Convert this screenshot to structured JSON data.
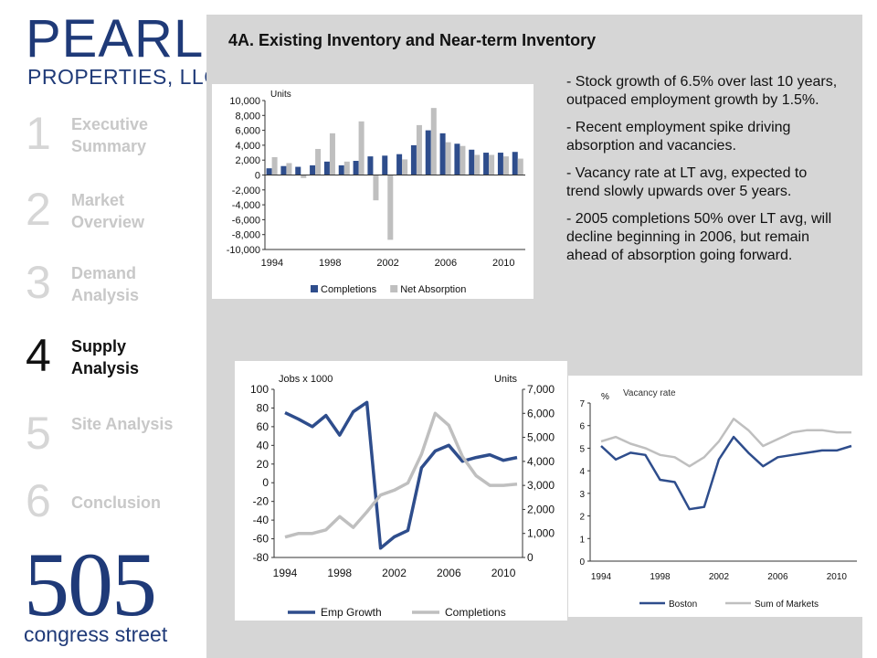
{
  "logo": {
    "top_line1": "PEARL",
    "top_line2": "PROPERTIES, LLC",
    "bottom_line1": "505",
    "bottom_line2": "congress street",
    "color": "#1f3a78"
  },
  "nav": [
    {
      "num": "1",
      "label": "Executive Summary",
      "active": false
    },
    {
      "num": "2",
      "label": "Market Overview",
      "active": false
    },
    {
      "num": "3",
      "label": "Demand Analysis",
      "active": false
    },
    {
      "num": "4",
      "label": "Supply Analysis",
      "active": true
    },
    {
      "num": "5",
      "label": "Site Analysis",
      "active": false
    },
    {
      "num": "6",
      "label": "Conclusion",
      "active": false
    }
  ],
  "page_title": "4A. Existing Inventory and Near-term Inventory",
  "bullets": [
    "- Stock growth of 6.5% over last 10 years, outpaced employment growth by 1.5%.",
    "- Recent employment spike driving absorption and vacancies.",
    "- Vacancy rate at LT avg, expected to trend slowly upwards over 5 years.",
    "- 2005 completions 50% over LT avg, will decline beginning in 2006, but remain ahead of absorption going forward."
  ],
  "chart_data": [
    {
      "type": "bar",
      "ylabel": "Units",
      "ylim": [
        -10000,
        10000
      ],
      "yticks": [
        "10,000",
        "8,000",
        "6,000",
        "4,000",
        "2,000",
        "0",
        "-2,000",
        "-4,000",
        "-6,000",
        "-8,000",
        "-10,000"
      ],
      "x_tick_labels": [
        "1994",
        "1998",
        "2002",
        "2006",
        "2010"
      ],
      "categories": [
        1994,
        1995,
        1996,
        1997,
        1998,
        1999,
        2000,
        2001,
        2002,
        2003,
        2004,
        2005,
        2006,
        2007,
        2008,
        2009,
        2010,
        2011
      ],
      "series": [
        {
          "name": "Completions",
          "color": "#2e4d8c",
          "values": [
            900,
            1200,
            1100,
            1300,
            1800,
            1300,
            1900,
            2500,
            2600,
            2800,
            4000,
            6000,
            5600,
            4200,
            3400,
            3000,
            3000,
            3100
          ]
        },
        {
          "name": "Net Absorption",
          "color": "#bfbfbf",
          "values": [
            2400,
            1600,
            -400,
            3500,
            5600,
            1800,
            7200,
            -3400,
            -8700,
            2100,
            6700,
            9000,
            4400,
            3900,
            2700,
            2700,
            2500,
            2200
          ]
        }
      ],
      "grid": false,
      "legend": "bottom"
    },
    {
      "type": "line",
      "ylabel_left": "Jobs x 1000",
      "ylabel_right": "Units",
      "ylim_left": [
        -80,
        100
      ],
      "ylim_right": [
        0,
        7000
      ],
      "yticks_left": [
        "100",
        "80",
        "60",
        "40",
        "20",
        "0",
        "-20",
        "-40",
        "-60",
        "-80"
      ],
      "yticks_right": [
        "7,000",
        "6,000",
        "5,000",
        "4,000",
        "3,000",
        "2,000",
        "1,000",
        "0"
      ],
      "x_tick_labels": [
        "1994",
        "1998",
        "2002",
        "2006",
        "2010"
      ],
      "x": [
        1994,
        1995,
        1996,
        1997,
        1998,
        1999,
        2000,
        2001,
        2002,
        2003,
        2004,
        2005,
        2006,
        2007,
        2008,
        2009,
        2010,
        2011
      ],
      "series": [
        {
          "name": "Emp Growth",
          "axis": "left",
          "color": "#2e4d8c",
          "values": [
            75,
            68,
            60,
            72,
            51,
            76,
            86,
            -70,
            -58,
            -51,
            16,
            34,
            40,
            23,
            27,
            30,
            24,
            27
          ]
        },
        {
          "name": "Completions",
          "axis": "right",
          "color": "#bfbfbf",
          "values": [
            850,
            1000,
            1000,
            1150,
            1700,
            1250,
            1900,
            2600,
            2800,
            3100,
            4300,
            6000,
            5500,
            4200,
            3400,
            3000,
            3000,
            3050
          ]
        }
      ],
      "grid": false,
      "legend": "bottom"
    },
    {
      "type": "line",
      "title": "Vacancy rate",
      "ylabel": "%",
      "ylim": [
        0,
        7
      ],
      "yticks": [
        "7",
        "6",
        "5",
        "4",
        "3",
        "2",
        "1",
        "0"
      ],
      "x_tick_labels": [
        "1994",
        "1998",
        "2002",
        "2006",
        "2010"
      ],
      "x": [
        1994,
        1995,
        1996,
        1997,
        1998,
        1999,
        2000,
        2001,
        2002,
        2003,
        2004,
        2005,
        2006,
        2007,
        2008,
        2009,
        2010,
        2011
      ],
      "series": [
        {
          "name": "Boston",
          "color": "#2e4d8c",
          "values": [
            5.1,
            4.5,
            4.8,
            4.7,
            3.6,
            3.5,
            2.3,
            2.4,
            4.5,
            5.5,
            4.8,
            4.2,
            4.6,
            4.7,
            4.8,
            4.9,
            4.9,
            5.1
          ]
        },
        {
          "name": "Sum of Markets",
          "color": "#bfbfbf",
          "values": [
            5.3,
            5.5,
            5.2,
            5.0,
            4.7,
            4.6,
            4.2,
            4.6,
            5.3,
            6.3,
            5.8,
            5.1,
            5.4,
            5.7,
            5.8,
            5.8,
            5.7,
            5.7
          ]
        }
      ],
      "grid": false,
      "legend": "bottom"
    }
  ]
}
